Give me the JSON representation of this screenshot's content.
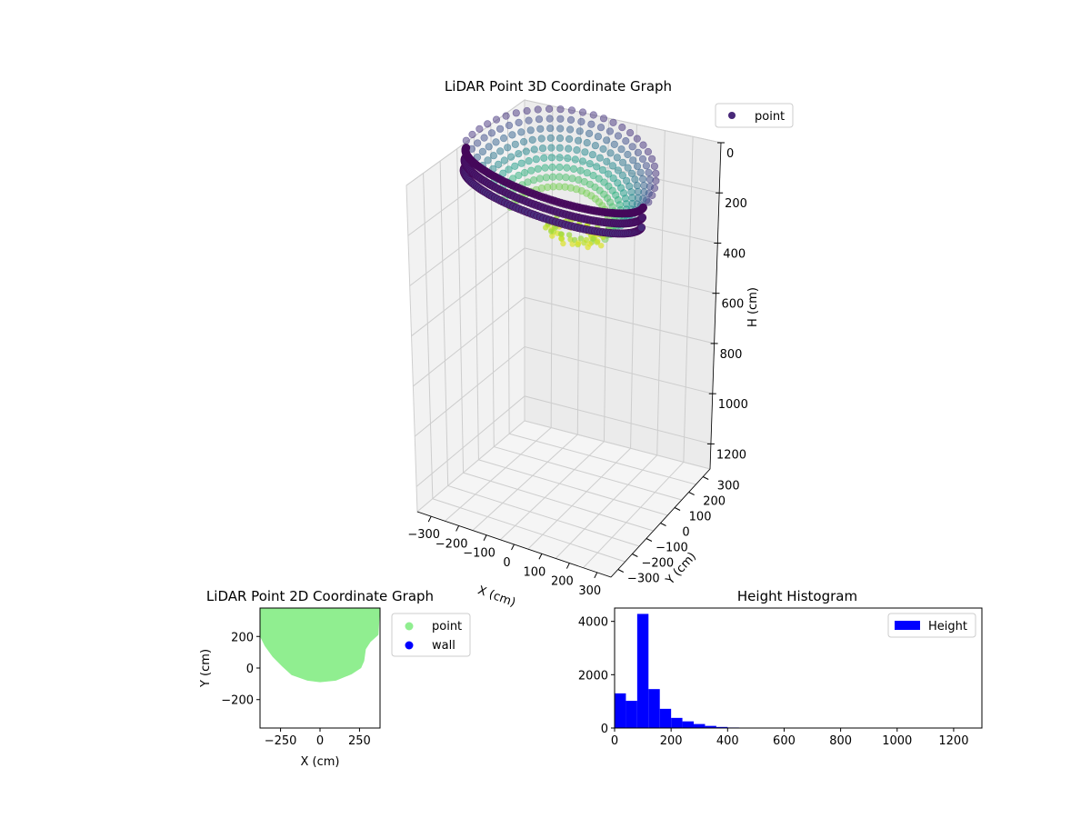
{
  "figure": {
    "charts": [
      "3d",
      "2d",
      "histogram"
    ]
  },
  "chart_data": [
    {
      "type": "scatter",
      "projection": "3d",
      "title": "LiDAR Point 3D Coordinate Graph",
      "xlabel": "X (cm)",
      "ylabel": "Y (cm)",
      "zlabel": "H (cm)",
      "x_ticks": [
        "−300",
        "−200",
        "−100",
        "0",
        "100",
        "200",
        "300"
      ],
      "y_ticks": [
        "−300",
        "−200",
        "−100",
        "0",
        "100",
        "200",
        "300"
      ],
      "z_ticks": [
        "0",
        "200",
        "400",
        "600",
        "800",
        "1000",
        "1200"
      ],
      "xlim": [
        -350,
        350
      ],
      "ylim": [
        -350,
        350
      ],
      "zlim": [
        0,
        1300
      ],
      "z_inverted": true,
      "grid": true,
      "legend": {
        "placement": "top-right",
        "entries": [
          "point"
        ]
      },
      "series": [
        {
          "name": "point",
          "colormap": "viridis",
          "legend_color": "#482878",
          "shape": "bowl-shaped ring of scan lines",
          "x_range": [
            -330,
            330
          ],
          "y_range": [
            -80,
            350
          ],
          "h_range": [
            0,
            280
          ]
        }
      ]
    },
    {
      "type": "scatter",
      "title": "LiDAR Point 2D Coordinate Graph",
      "xlabel": "X (cm)",
      "ylabel": "Y (cm)",
      "x_ticks": [
        "−250",
        "0",
        "250"
      ],
      "y_ticks": [
        "−200",
        "0",
        "200"
      ],
      "xlim": [
        -380,
        380
      ],
      "ylim": [
        -380,
        380
      ],
      "legend": {
        "placement": "outside-right",
        "entries": [
          "point",
          "wall"
        ]
      },
      "series": [
        {
          "name": "point",
          "color": "#90ee90"
        },
        {
          "name": "wall",
          "color": "#0000ff"
        }
      ],
      "point_region_outline": [
        [
          -380,
          380
        ],
        [
          380,
          380
        ],
        [
          370,
          210
        ],
        [
          320,
          165
        ],
        [
          290,
          120
        ],
        [
          280,
          45
        ],
        [
          260,
          0
        ],
        [
          200,
          -40
        ],
        [
          100,
          -80
        ],
        [
          0,
          -90
        ],
        [
          -80,
          -80
        ],
        [
          -180,
          -45
        ],
        [
          -240,
          10
        ],
        [
          -300,
          70
        ],
        [
          -350,
          140
        ],
        [
          -380,
          200
        ]
      ]
    },
    {
      "type": "bar",
      "subtype": "histogram",
      "title": "Height Histogram",
      "xlabel": "",
      "ylabel": "",
      "x_ticks": [
        "0",
        "200",
        "400",
        "600",
        "800",
        "1000",
        "1200"
      ],
      "y_ticks": [
        "0",
        "2000",
        "4000"
      ],
      "xlim": [
        0,
        1300
      ],
      "ylim": [
        0,
        4500
      ],
      "bin_width": 40,
      "bin_start": 0,
      "color": "#0000ff",
      "legend": {
        "placement": "top-right",
        "entries": [
          "Height"
        ]
      },
      "series": [
        {
          "name": "Height",
          "values": [
            1300,
            1020,
            4280,
            1460,
            720,
            380,
            250,
            150,
            80,
            40,
            20,
            10,
            6,
            4,
            3,
            2,
            2,
            1,
            1,
            1,
            1,
            1,
            1,
            1,
            1,
            1,
            1,
            1,
            1,
            1,
            1,
            1
          ]
        }
      ]
    }
  ]
}
